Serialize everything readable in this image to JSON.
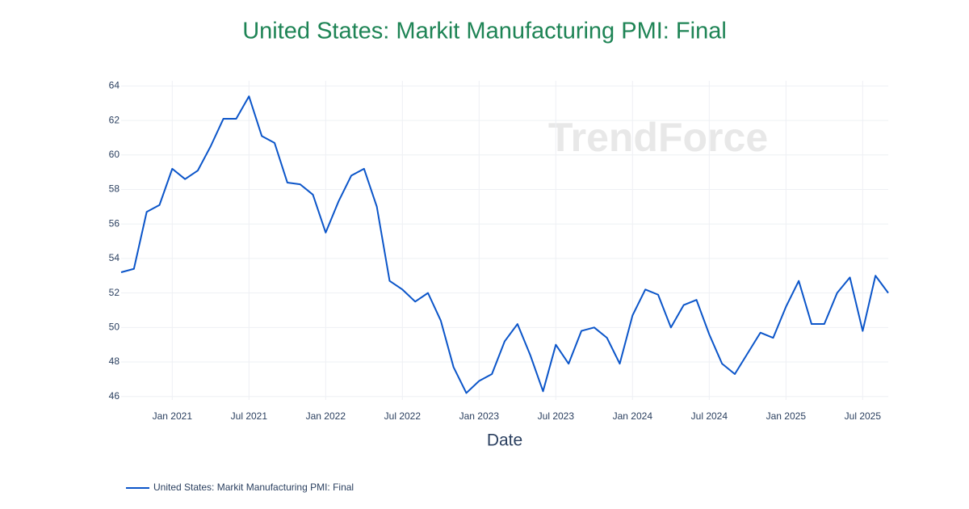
{
  "chart_data": {
    "type": "line",
    "title": "United States: Markit Manufacturing PMI: Final",
    "x_label": "Date",
    "watermark": "TrendForce",
    "x": [
      "2020-09",
      "2020-10",
      "2020-11",
      "2020-12",
      "2021-01",
      "2021-02",
      "2021-03",
      "2021-04",
      "2021-05",
      "2021-06",
      "2021-07",
      "2021-08",
      "2021-09",
      "2021-10",
      "2021-11",
      "2021-12",
      "2022-01",
      "2022-02",
      "2022-03",
      "2022-04",
      "2022-05",
      "2022-06",
      "2022-07",
      "2022-08",
      "2022-09",
      "2022-10",
      "2022-11",
      "2022-12",
      "2023-01",
      "2023-02",
      "2023-03",
      "2023-04",
      "2023-05",
      "2023-06",
      "2023-07",
      "2023-08",
      "2023-09",
      "2023-10",
      "2023-11",
      "2023-12",
      "2024-01",
      "2024-02",
      "2024-03",
      "2024-04",
      "2024-05",
      "2024-06",
      "2024-07",
      "2024-08",
      "2024-09",
      "2024-10",
      "2024-11",
      "2024-12",
      "2025-01",
      "2025-02",
      "2025-03",
      "2025-04",
      "2025-05",
      "2025-06",
      "2025-07",
      "2025-08",
      "2025-09"
    ],
    "series": [
      {
        "name": "United States: Markit Manufacturing PMI: Final",
        "color": "#0b55c9",
        "values": [
          53.2,
          53.4,
          56.7,
          57.1,
          59.2,
          58.6,
          59.1,
          60.5,
          62.1,
          62.1,
          63.4,
          61.1,
          60.7,
          58.4,
          58.3,
          57.7,
          55.5,
          57.3,
          58.8,
          59.2,
          57.0,
          52.7,
          52.2,
          51.5,
          52.0,
          50.4,
          47.7,
          46.2,
          46.9,
          47.3,
          49.2,
          50.2,
          48.4,
          46.3,
          49.0,
          47.9,
          49.8,
          50.0,
          49.4,
          47.9,
          50.7,
          52.2,
          51.9,
          50.0,
          51.3,
          51.6,
          49.6,
          47.9,
          47.3,
          48.5,
          49.7,
          49.4,
          51.2,
          52.7,
          50.2,
          50.2,
          52.0,
          52.9,
          49.8,
          53.0,
          52.0
        ]
      }
    ],
    "xlim": [
      "2020-09",
      "2025-09"
    ],
    "xticks": [
      {
        "value": "2021-01",
        "label": "Jan 2021"
      },
      {
        "value": "2021-07",
        "label": "Jul 2021"
      },
      {
        "value": "2022-01",
        "label": "Jan 2022"
      },
      {
        "value": "2022-07",
        "label": "Jul 2022"
      },
      {
        "value": "2023-01",
        "label": "Jan 2023"
      },
      {
        "value": "2023-07",
        "label": "Jul 2023"
      },
      {
        "value": "2024-01",
        "label": "Jan 2024"
      },
      {
        "value": "2024-07",
        "label": "Jul 2024"
      },
      {
        "value": "2025-01",
        "label": "Jan 2025"
      },
      {
        "value": "2025-07",
        "label": "Jul 2025"
      }
    ],
    "ylim": [
      45.8,
      64.3
    ],
    "yticks": [
      46,
      48,
      50,
      52,
      54,
      56,
      58,
      60,
      62,
      64
    ],
    "grid": true,
    "legend": "bottom-left"
  }
}
